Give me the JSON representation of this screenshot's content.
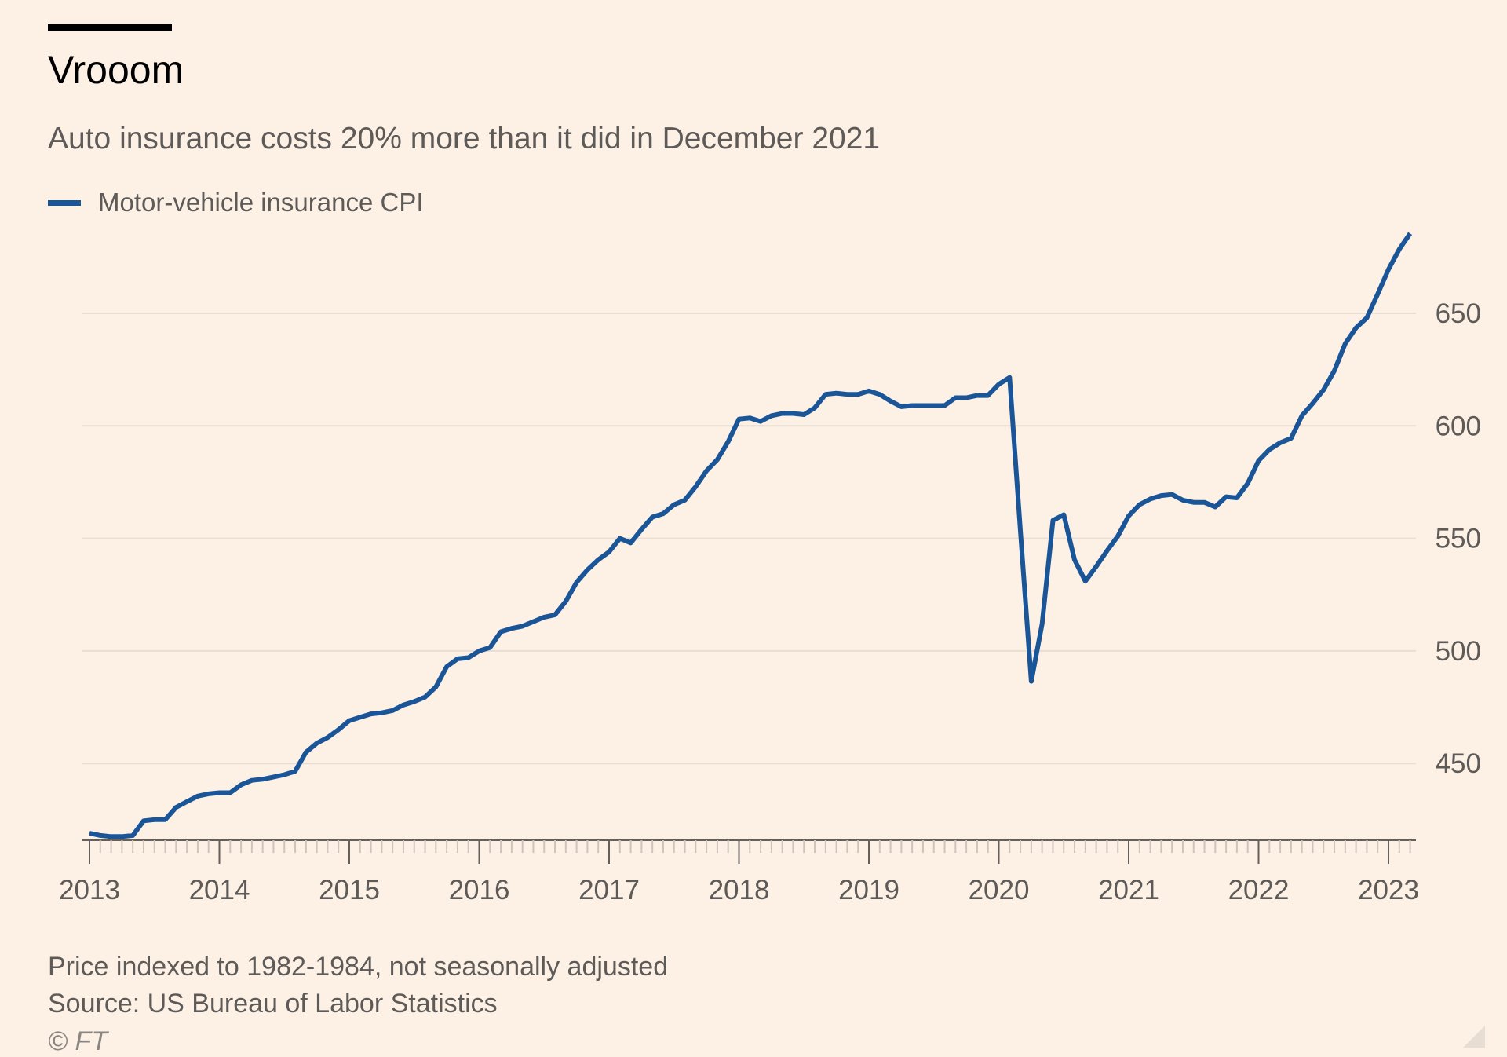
{
  "header": {
    "title": "Vrooom",
    "subtitle": "Auto insurance costs 20% more than it did in December 2021"
  },
  "footer": {
    "note": "Price indexed to 1982-1984, not seasonally adjusted",
    "source": "Source: US Bureau of Labor Statistics",
    "credit": "© FT"
  },
  "colors": {
    "background": "#FDF1E6",
    "line": "#1A5598",
    "grid": "#E8DED3",
    "axis": "#66605C",
    "text": "#5D5A57"
  },
  "chart_data": {
    "type": "line",
    "title": "Vrooom",
    "subtitle": "Auto insurance costs 20% more than it did in December 2021",
    "xlabel": "",
    "ylabel": "",
    "xlim": [
      "2013-01",
      "2023-03"
    ],
    "ylim": [
      416,
      686
    ],
    "x_ticks": [
      "2013",
      "2014",
      "2015",
      "2016",
      "2017",
      "2018",
      "2019",
      "2020",
      "2021",
      "2022",
      "2023"
    ],
    "y_ticks": [
      450,
      500,
      550,
      600,
      650
    ],
    "y_axis_position": "right",
    "grid": "horizontal",
    "legend_position": "top-left",
    "series": [
      {
        "name": "Motor-vehicle insurance CPI",
        "color": "#1A5598",
        "x": [
          "2013-01",
          "2013-02",
          "2013-03",
          "2013-04",
          "2013-05",
          "2013-06",
          "2013-07",
          "2013-08",
          "2013-09",
          "2013-10",
          "2013-11",
          "2013-12",
          "2014-01",
          "2014-02",
          "2014-03",
          "2014-04",
          "2014-05",
          "2014-06",
          "2014-07",
          "2014-08",
          "2014-09",
          "2014-10",
          "2014-11",
          "2014-12",
          "2015-01",
          "2015-02",
          "2015-03",
          "2015-04",
          "2015-05",
          "2015-06",
          "2015-07",
          "2015-08",
          "2015-09",
          "2015-10",
          "2015-11",
          "2015-12",
          "2016-01",
          "2016-02",
          "2016-03",
          "2016-04",
          "2016-05",
          "2016-06",
          "2016-07",
          "2016-08",
          "2016-09",
          "2016-10",
          "2016-11",
          "2016-12",
          "2017-01",
          "2017-02",
          "2017-03",
          "2017-04",
          "2017-05",
          "2017-06",
          "2017-07",
          "2017-08",
          "2017-09",
          "2017-10",
          "2017-11",
          "2017-12",
          "2018-01",
          "2018-02",
          "2018-03",
          "2018-04",
          "2018-05",
          "2018-06",
          "2018-07",
          "2018-08",
          "2018-09",
          "2018-10",
          "2018-11",
          "2018-12",
          "2019-01",
          "2019-02",
          "2019-03",
          "2019-04",
          "2019-05",
          "2019-06",
          "2019-07",
          "2019-08",
          "2019-09",
          "2019-10",
          "2019-11",
          "2019-12",
          "2020-01",
          "2020-02",
          "2020-03",
          "2020-04",
          "2020-05",
          "2020-06",
          "2020-07",
          "2020-08",
          "2020-09",
          "2020-10",
          "2020-11",
          "2020-12",
          "2021-01",
          "2021-02",
          "2021-03",
          "2021-04",
          "2021-05",
          "2021-06",
          "2021-07",
          "2021-08",
          "2021-09",
          "2021-10",
          "2021-11",
          "2021-12",
          "2022-01",
          "2022-02",
          "2022-03",
          "2022-04",
          "2022-05",
          "2022-06",
          "2022-07",
          "2022-08",
          "2022-09",
          "2022-10",
          "2022-11",
          "2022-12",
          "2023-01",
          "2023-02",
          "2023-03"
        ],
        "values": [
          419.0,
          418.0,
          417.5,
          417.5,
          418.0,
          424.5,
          425.0,
          425.0,
          430.5,
          433.0,
          435.5,
          436.5,
          437.0,
          437.0,
          440.5,
          442.5,
          443.0,
          444.0,
          445.0,
          446.5,
          455.0,
          459.0,
          461.5,
          465.0,
          469.0,
          470.5,
          472.0,
          472.5,
          473.5,
          476.0,
          477.5,
          479.5,
          484.0,
          493.0,
          496.5,
          497.0,
          500.0,
          501.5,
          508.5,
          510.0,
          511.0,
          513.0,
          515.0,
          516.0,
          522.0,
          530.5,
          536.0,
          540.5,
          544.0,
          550.0,
          548.0,
          554.0,
          559.5,
          561.0,
          565.0,
          567.0,
          573.0,
          580.0,
          585.0,
          593.0,
          603.0,
          603.5,
          602.0,
          604.5,
          605.5,
          605.5,
          605.0,
          608.0,
          614.0,
          614.5,
          614.0,
          614.0,
          615.5,
          614.0,
          611.0,
          608.5,
          609.0,
          609.0,
          609.0,
          609.0,
          612.5,
          612.5,
          613.5,
          613.5,
          618.5,
          621.5,
          553.0,
          486.5,
          512.0,
          558.0,
          560.5,
          540.5,
          531.0,
          537.5,
          544.5,
          551.0,
          560.0,
          565.0,
          567.5,
          569.0,
          569.5,
          567.0,
          566.0,
          566.0,
          564.0,
          568.5,
          568.0,
          574.5,
          584.5,
          589.5,
          592.5,
          594.5,
          604.5,
          610.0,
          616.0,
          624.5,
          636.5,
          643.5,
          648.0,
          658.5,
          669.5,
          678.5,
          685.5
        ]
      }
    ]
  }
}
